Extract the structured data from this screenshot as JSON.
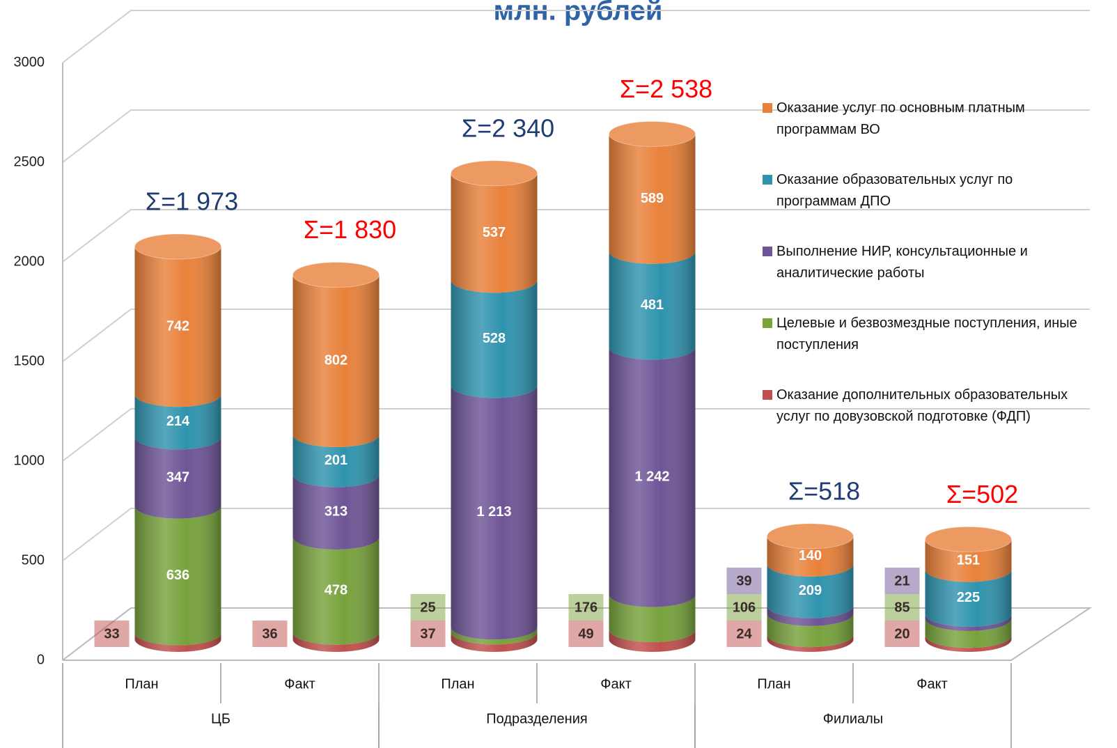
{
  "chart_data": {
    "type": "stacked_cylinder",
    "title": "млн. рублей",
    "categories": [
      "План",
      "Факт",
      "План",
      "Факт",
      "План",
      "Факт"
    ],
    "groups": [
      {
        "name": "ЦБ",
        "size": 2
      },
      {
        "name": "Подразделения",
        "size": 2
      },
      {
        "name": "Филиалы",
        "size": 2
      }
    ],
    "series": [
      {
        "name": "Оказание дополнительных образовательных услуг по довузовской подготовке (ФДП)",
        "color": "#c0504d",
        "values": [
          33,
          36,
          37,
          49,
          24,
          20
        ]
      },
      {
        "name": "Целевые и безвозмездные поступления, иные поступления",
        "color": "#77a23c",
        "values": [
          636,
          478,
          25,
          176,
          106,
          85
        ]
      },
      {
        "name": "Выполнение НИР, консультационные и аналитические работы",
        "color": "#6e5596",
        "values": [
          347,
          313,
          1213,
          1242,
          39,
          21
        ],
        "value_labels": [
          "347",
          "313",
          "1 213",
          "1 242",
          "39",
          "21"
        ]
      },
      {
        "name": "Оказание образовательных услуг по программам ДПО",
        "color": "#2f93ae",
        "values": [
          214,
          201,
          528,
          481,
          209,
          225
        ]
      },
      {
        "name": "Оказание услуг по основным платным программам ВО",
        "color": "#e8813a",
        "values": [
          742,
          802,
          537,
          589,
          140,
          151
        ]
      }
    ],
    "annotations": [
      {
        "text": "Σ=1 973",
        "color": "#1f3d73"
      },
      {
        "text": "Σ=1 830",
        "color": "#ff0000"
      },
      {
        "text": "Σ=2 340",
        "color": "#1f3d73"
      },
      {
        "text": "Σ=2 538",
        "color": "#ff0000"
      },
      {
        "text": "Σ=518",
        "color": "#1f3d73"
      },
      {
        "text": "Σ=502",
        "color": "#ff0000"
      }
    ],
    "ylim": [
      0,
      3000
    ],
    "yticks": [
      0,
      500,
      1000,
      1500,
      2000,
      2500,
      3000
    ],
    "grid": true,
    "legend": "right"
  }
}
